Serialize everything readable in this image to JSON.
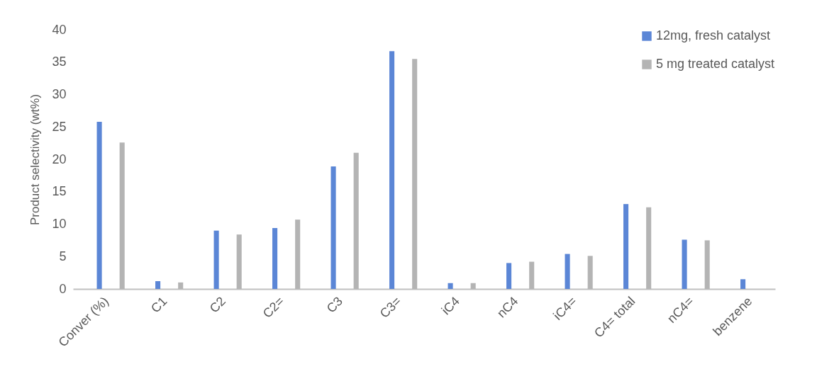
{
  "chart_data": {
    "type": "bar",
    "ylabel": "Product selectivity (wt%)",
    "categories": [
      "Conver (%)",
      "C1",
      "C2",
      "C2=",
      "C3",
      "C3=",
      "iC4",
      "nC4",
      "iC4=",
      "C4= total",
      "nC4=",
      "benzene"
    ],
    "series": [
      {
        "name": "12mg, fresh catalyst",
        "color": "#5b86d6",
        "values": [
          25.8,
          1.2,
          9.0,
          9.4,
          18.9,
          36.7,
          0.9,
          4.0,
          5.4,
          13.1,
          7.6,
          1.5
        ]
      },
      {
        "name": "5 mg treated catalyst",
        "color": "#b4b4b4",
        "values": [
          22.6,
          1.0,
          8.4,
          10.7,
          21.0,
          35.5,
          0.9,
          4.2,
          5.1,
          12.6,
          7.5,
          null
        ]
      }
    ],
    "ylim": [
      0,
      40
    ],
    "yticks": [
      0,
      5,
      10,
      15,
      20,
      25,
      30,
      35,
      40
    ],
    "grid": false,
    "legend": "top right"
  }
}
